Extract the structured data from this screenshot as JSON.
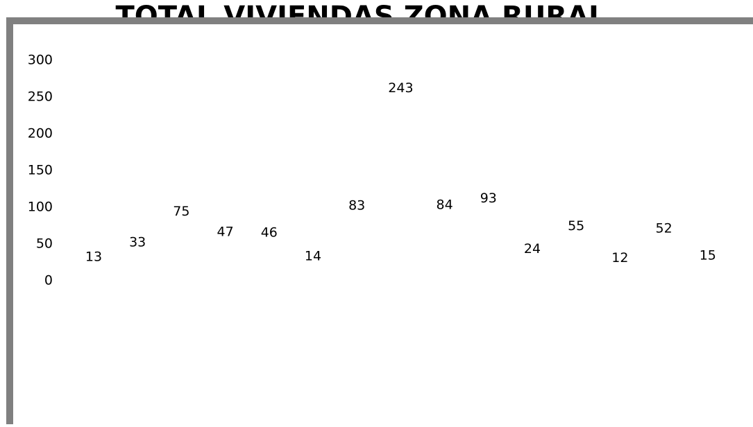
{
  "chart_data": {
    "type": "line",
    "title": "TOTAL VIVIENDAS ZONA RURAL",
    "values": [
      13,
      33,
      75,
      47,
      46,
      14,
      83,
      243,
      84,
      93,
      24,
      55,
      12,
      52,
      15
    ],
    "ylim": [
      0,
      300
    ],
    "yticks": [
      0,
      50,
      100,
      150,
      200,
      250,
      300
    ]
  }
}
